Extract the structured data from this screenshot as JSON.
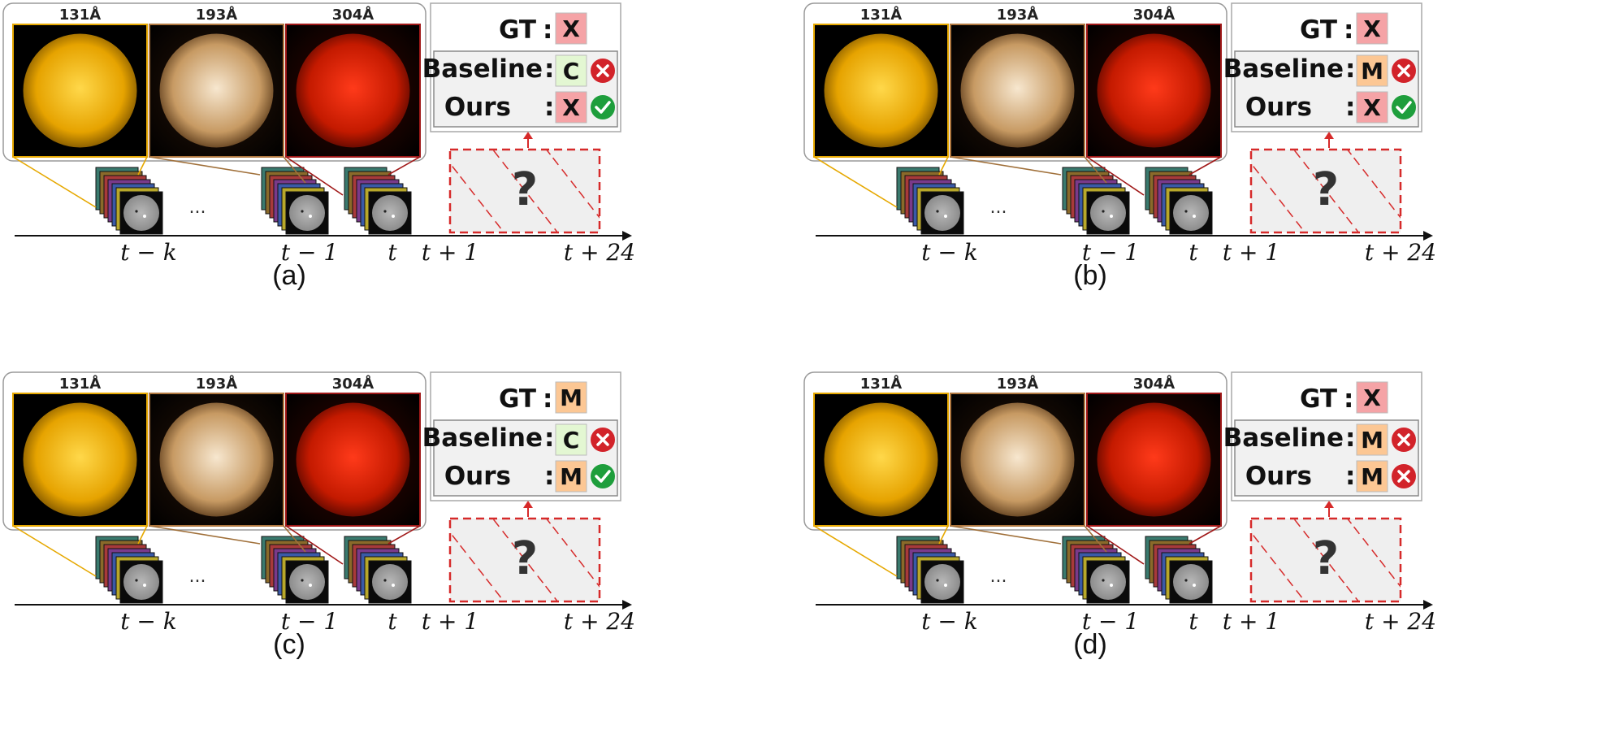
{
  "wavelengths": [
    "131Å",
    "193Å",
    "304Å"
  ],
  "result_labels": {
    "gt": "GT",
    "baseline": "Baseline",
    "ours": "Ours",
    "colon": ":"
  },
  "axis_ticks": {
    "t_minus_k": "t − k",
    "t_minus_1": "t − 1",
    "t": "t",
    "t_plus_1": "t + 1",
    "t_plus_24": "t + 24"
  },
  "ellipsis": "...",
  "unknown": "?",
  "class_colors": {
    "X": "#f5a3a6",
    "M": "#fcc794",
    "C": "#e3f7d2"
  },
  "status_colors": {
    "correct": "#1e9e3c",
    "wrong": "#d2232a"
  },
  "panels": [
    {
      "caption": "(a)",
      "gt": "X",
      "baseline": {
        "cls": "C",
        "status": "wrong"
      },
      "ours": {
        "cls": "X",
        "status": "correct"
      }
    },
    {
      "caption": "(b)",
      "gt": "X",
      "baseline": {
        "cls": "M",
        "status": "wrong"
      },
      "ours": {
        "cls": "X",
        "status": "correct"
      }
    },
    {
      "caption": "(c)",
      "gt": "M",
      "baseline": {
        "cls": "C",
        "status": "wrong"
      },
      "ours": {
        "cls": "M",
        "status": "correct"
      }
    },
    {
      "caption": "(d)",
      "gt": "X",
      "baseline": {
        "cls": "M",
        "status": "wrong"
      },
      "ours": {
        "cls": "M",
        "status": "wrong"
      }
    }
  ]
}
